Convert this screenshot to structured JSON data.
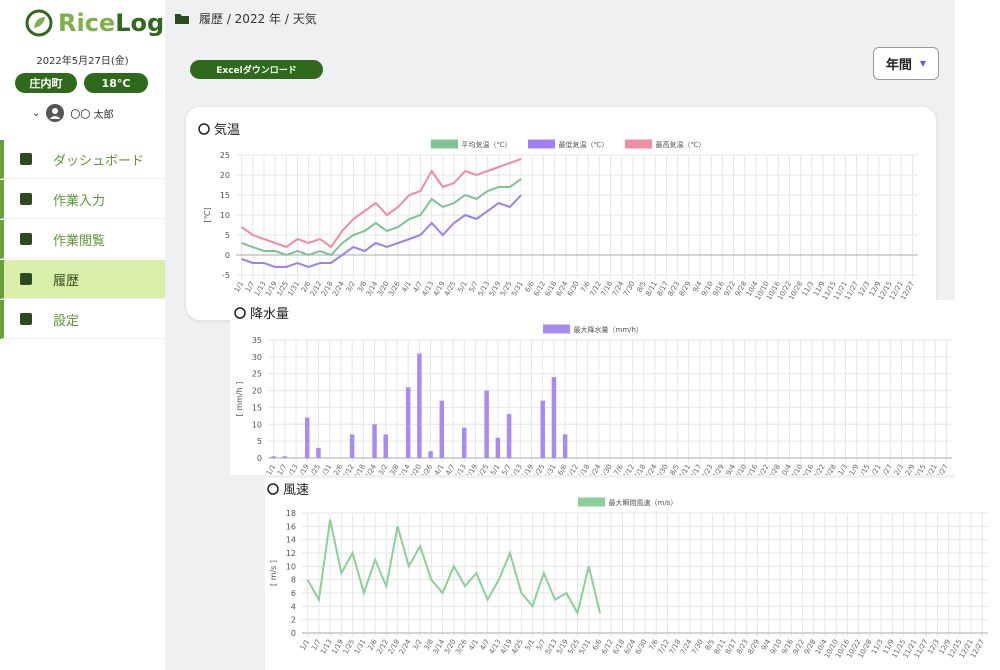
{
  "sidebar": {
    "logo": [
      "Rice",
      "Log"
    ],
    "date": "2022年5月27日(金)",
    "location": "庄内町",
    "temperature": "18°C",
    "user": "〇〇 太郎",
    "nav": [
      "ダッシュボード",
      "作業入力",
      "作業閲覧",
      "履歴",
      "設定"
    ]
  },
  "header": {
    "breadcrumb": "履歴 / 2022 年 / 天気",
    "download": "Excelダウンロード",
    "period": "年間"
  },
  "chart_data": [
    {
      "type": "line",
      "title": "気温",
      "y_label": "[℃]",
      "ylim": [
        -5,
        25
      ],
      "yticks": [
        -5,
        0,
        5,
        10,
        15,
        20,
        25
      ],
      "grid": true,
      "categories": [
        "1/1",
        "1/7",
        "1/13",
        "1/19",
        "1/25",
        "1/31",
        "2/6",
        "2/12",
        "2/18",
        "2/24",
        "3/2",
        "3/8",
        "3/14",
        "3/20",
        "3/26",
        "4/1",
        "4/7",
        "4/13",
        "4/19",
        "4/25",
        "5/1",
        "5/7",
        "5/13",
        "5/19",
        "5/25",
        "5/31",
        "6/6",
        "6/12",
        "6/18",
        "6/24",
        "6/30",
        "7/6",
        "7/12",
        "7/18",
        "7/24",
        "7/30",
        "8/5",
        "8/11",
        "8/17",
        "8/23",
        "8/29",
        "9/4",
        "9/10",
        "9/16",
        "9/22",
        "9/28",
        "10/4",
        "10/10",
        "10/16",
        "10/22",
        "10/28",
        "11/3",
        "11/9",
        "11/15",
        "11/21",
        "11/27",
        "12/3",
        "12/9",
        "12/15",
        "12/21",
        "12/27"
      ],
      "series": [
        {
          "name": "平均気温（℃）",
          "color": "#7fc393",
          "values": [
            3,
            2,
            1,
            1,
            0,
            1,
            0,
            1,
            0,
            3,
            5,
            6,
            8,
            6,
            7,
            9,
            10,
            14,
            12,
            13,
            15,
            14,
            16,
            17,
            17,
            19,
            null,
            null,
            null,
            null,
            null,
            null,
            null,
            null,
            null,
            null,
            null,
            null,
            null,
            null,
            null,
            null,
            null,
            null,
            null,
            null,
            null,
            null,
            null,
            null,
            null,
            null,
            null,
            null,
            null,
            null,
            null,
            null,
            null,
            null,
            null
          ]
        },
        {
          "name": "最低気温（℃）",
          "color": "#a07ff0",
          "values": [
            -1,
            -2,
            -2,
            -3,
            -3,
            -2,
            -3,
            -2,
            -2,
            0,
            2,
            1,
            3,
            2,
            3,
            4,
            5,
            8,
            5,
            8,
            10,
            9,
            11,
            13,
            12,
            15,
            null,
            null,
            null,
            null,
            null,
            null,
            null,
            null,
            null,
            null,
            null,
            null,
            null,
            null,
            null,
            null,
            null,
            null,
            null,
            null,
            null,
            null,
            null,
            null,
            null,
            null,
            null,
            null,
            null,
            null,
            null,
            null,
            null,
            null,
            null
          ]
        },
        {
          "name": "最高気温（℃）",
          "color": "#f08ca3",
          "values": [
            7,
            5,
            4,
            3,
            2,
            4,
            3,
            4,
            2,
            6,
            9,
            11,
            13,
            10,
            12,
            15,
            16,
            21,
            17,
            18,
            21,
            20,
            21,
            22,
            23,
            24,
            null,
            null,
            null,
            null,
            null,
            null,
            null,
            null,
            null,
            null,
            null,
            null,
            null,
            null,
            null,
            null,
            null,
            null,
            null,
            null,
            null,
            null,
            null,
            null,
            null,
            null,
            null,
            null,
            null,
            null,
            null,
            null,
            null,
            null,
            null
          ]
        }
      ]
    },
    {
      "type": "bar",
      "title": "降水量",
      "y_label": "[ mm/h ]",
      "ylim": [
        0,
        35
      ],
      "yticks": [
        0,
        5,
        10,
        15,
        20,
        25,
        30,
        35
      ],
      "grid": true,
      "categories": [
        "1/1",
        "1/7",
        "1/13",
        "1/19",
        "1/25",
        "1/31",
        "2/6",
        "2/12",
        "2/18",
        "2/24",
        "3/2",
        "3/8",
        "3/14",
        "3/20",
        "3/26",
        "4/1",
        "4/7",
        "4/13",
        "4/19",
        "4/25",
        "5/1",
        "5/7",
        "5/13",
        "5/19",
        "5/25",
        "5/31",
        "6/6",
        "6/12",
        "6/18",
        "6/24",
        "6/30",
        "7/6",
        "7/12",
        "7/18",
        "7/24",
        "7/30",
        "8/5",
        "8/11",
        "8/17",
        "8/23",
        "8/29",
        "9/4",
        "9/10",
        "9/16",
        "9/22",
        "9/28",
        "10/4",
        "10/10",
        "10/16",
        "10/22",
        "10/28",
        "11/3",
        "11/9",
        "11/15",
        "11/21",
        "11/27",
        "12/3",
        "12/9",
        "12/15",
        "12/21",
        "12/27"
      ],
      "series": [
        {
          "name": "最大降水量（mm/h）",
          "color": "#a98af2",
          "values": [
            0.5,
            0.5,
            0,
            12,
            3,
            0,
            0,
            7,
            0,
            10,
            7,
            0,
            21,
            31,
            2,
            17,
            0,
            9,
            0,
            20,
            6,
            13,
            0,
            0,
            17,
            24,
            7,
            null,
            null,
            null,
            null,
            null,
            null,
            null,
            null,
            null,
            null,
            null,
            null,
            null,
            null,
            null,
            null,
            null,
            null,
            null,
            null,
            null,
            null,
            null,
            null,
            null,
            null,
            null,
            null,
            null,
            null,
            null,
            null,
            null,
            null
          ]
        }
      ]
    },
    {
      "type": "line",
      "title": "風速",
      "y_label": "[ m/s ]",
      "ylim": [
        0,
        18
      ],
      "yticks": [
        0,
        2,
        4,
        6,
        8,
        10,
        12,
        14,
        16,
        18
      ],
      "grid": true,
      "categories": [
        "1/1",
        "1/7",
        "1/13",
        "1/19",
        "1/25",
        "1/31",
        "2/6",
        "2/12",
        "2/18",
        "2/24",
        "3/2",
        "3/8",
        "3/14",
        "3/20",
        "3/26",
        "4/1",
        "4/7",
        "4/13",
        "4/19",
        "4/25",
        "5/1",
        "5/7",
        "5/13",
        "5/19",
        "5/25",
        "5/31",
        "6/6",
        "6/12",
        "6/18",
        "6/24",
        "6/30",
        "7/6",
        "7/12",
        "7/18",
        "7/24",
        "7/30",
        "8/5",
        "8/11",
        "8/17",
        "8/23",
        "8/29",
        "9/4",
        "9/10",
        "9/16",
        "9/22",
        "9/28",
        "10/4",
        "10/10",
        "10/16",
        "10/22",
        "10/28",
        "11/3",
        "11/9",
        "11/15",
        "11/21",
        "11/27",
        "12/3",
        "12/9",
        "12/15",
        "12/21",
        "12/27"
      ],
      "series": [
        {
          "name": "最大瞬間風速（m/s）",
          "color": "#8ccf99",
          "values": [
            8,
            5,
            17,
            9,
            12,
            6,
            11,
            7,
            16,
            10,
            13,
            8,
            6,
            10,
            7,
            9,
            5,
            8,
            12,
            6,
            4,
            9,
            5,
            6,
            3,
            10,
            3,
            null,
            null,
            null,
            null,
            null,
            null,
            null,
            null,
            null,
            null,
            null,
            null,
            null,
            null,
            null,
            null,
            null,
            null,
            null,
            null,
            null,
            null,
            null,
            null,
            null,
            null,
            null,
            null,
            null,
            null,
            null,
            null,
            null,
            null
          ]
        }
      ]
    }
  ]
}
